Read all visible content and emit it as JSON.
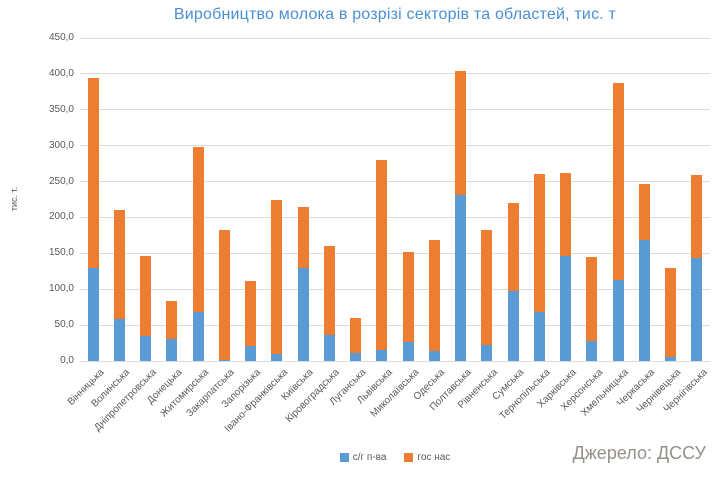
{
  "chart": {
    "title": "Виробництво молока в розрізі секторів та областей, тис. т",
    "y_axis_title": "тис. т.",
    "source": "Джерело: ДССУ"
  },
  "colors": {
    "enterprises": "#5B9BD5",
    "households": "#ED7D31",
    "title_text": "#4a8fd3",
    "axis_text": "#595959",
    "gridline": "#dcdcdc",
    "source_text": "#95908a"
  },
  "chart_data": {
    "type": "bar",
    "stacked": true,
    "title": "Виробництво молока в розрізі секторів та областей, тис. т",
    "ylabel": "тис. т.",
    "xlabel": "",
    "ylim": [
      0,
      450
    ],
    "y_tick_step": 50,
    "y_tick_labels": [
      "0,0",
      "50,0",
      "100,0",
      "150,0",
      "200,0",
      "250,0",
      "300,0",
      "350,0",
      "400,0",
      "450,0"
    ],
    "grid": true,
    "legend_position": "bottom",
    "categories": [
      "Вінницька",
      "Волинська",
      "Дніпропетровська",
      "Донецька",
      "Житомирська",
      "Закарпатська",
      "Запорізька",
      "Івано-Франківська",
      "Київська",
      "Кіровоградська",
      "Луганська",
      "Львівська",
      "Миколаївська",
      "Одеська",
      "Полтавська",
      "Рівненська",
      "Сумська",
      "Тернопільська",
      "Харківська",
      "Херсонська",
      "Хмельницька",
      "Черкаська",
      "Чернівецька",
      "Чернігівська"
    ],
    "series": [
      {
        "name": "с/г п-ва",
        "color": "#5B9BD5",
        "values": [
          130,
          58,
          35,
          31,
          68,
          1,
          21,
          10,
          130,
          36,
          11,
          15,
          26,
          14,
          231,
          23,
          97,
          68,
          147,
          28,
          113,
          169,
          5,
          144
        ]
      },
      {
        "name": "гос нас",
        "color": "#ED7D31",
        "values": [
          264,
          152,
          111,
          53,
          230,
          181,
          91,
          214,
          84,
          124,
          49,
          265,
          126,
          154,
          173,
          159,
          123,
          192,
          115,
          117,
          275,
          77,
          125,
          115
        ]
      }
    ],
    "totals": [
      394,
      210,
      146,
      84,
      298,
      182,
      112,
      224,
      214,
      160,
      60,
      280,
      152,
      168,
      404,
      182,
      220,
      260,
      262,
      145,
      388,
      246,
      130,
      259
    ]
  }
}
